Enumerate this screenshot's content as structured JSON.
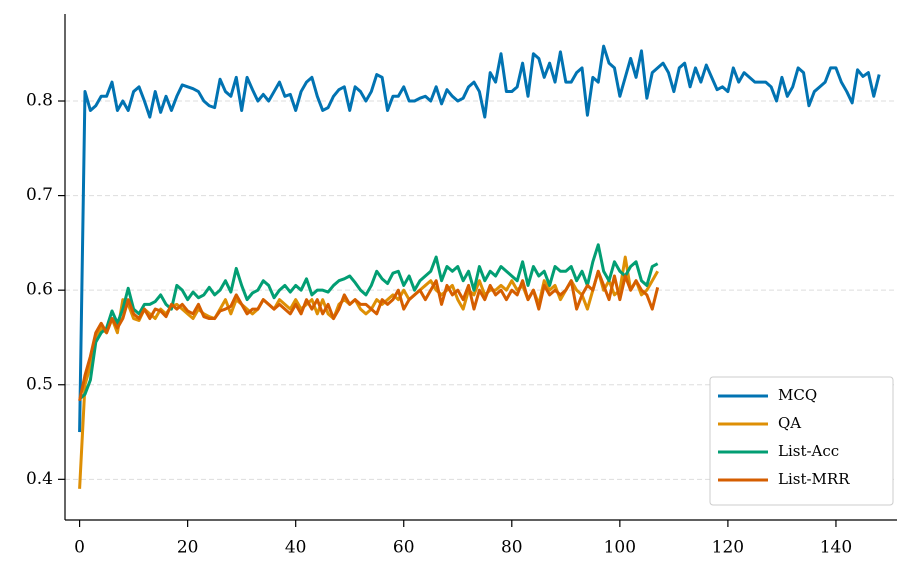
{
  "chart_data": {
    "type": "line",
    "x": [
      0,
      1,
      2,
      3,
      4,
      5,
      6,
      7,
      8,
      9,
      10,
      11,
      12,
      13,
      14,
      15,
      16,
      17,
      18,
      19,
      20,
      21,
      22,
      23,
      24,
      25,
      26,
      27,
      28,
      29,
      30,
      31,
      32,
      33,
      34,
      35,
      36,
      37,
      38,
      39,
      40,
      41,
      42,
      43,
      44,
      45,
      46,
      47,
      48,
      49,
      50,
      51,
      52,
      53,
      54,
      55,
      56,
      57,
      58,
      59,
      60,
      61,
      62,
      63,
      64,
      65,
      66,
      67,
      68,
      69,
      70,
      71,
      72,
      73,
      74,
      75,
      76,
      77,
      78,
      79,
      80,
      81,
      82,
      83,
      84,
      85,
      86,
      87,
      88,
      89,
      90,
      91,
      92,
      93,
      94,
      95,
      96,
      97,
      98,
      99,
      100,
      101,
      102,
      103,
      104,
      105,
      106,
      107,
      108,
      109,
      110,
      111,
      112,
      113,
      114,
      115,
      116,
      117,
      118,
      119,
      120,
      121,
      122,
      123,
      124,
      125,
      126,
      127,
      128,
      129,
      130,
      131,
      132,
      133,
      134,
      135,
      136,
      137,
      138,
      139,
      140,
      141,
      142,
      143,
      144,
      145,
      146,
      147,
      148
    ],
    "series": [
      {
        "name": "MCQ",
        "color": "#0173b2",
        "values": [
          0.45,
          0.81,
          0.79,
          0.795,
          0.805,
          0.805,
          0.82,
          0.79,
          0.8,
          0.79,
          0.81,
          0.815,
          0.8,
          0.783,
          0.81,
          0.788,
          0.805,
          0.79,
          0.805,
          0.817,
          0.815,
          0.813,
          0.81,
          0.8,
          0.795,
          0.793,
          0.823,
          0.81,
          0.805,
          0.825,
          0.79,
          0.825,
          0.812,
          0.8,
          0.807,
          0.8,
          0.81,
          0.82,
          0.805,
          0.807,
          0.79,
          0.81,
          0.82,
          0.825,
          0.805,
          0.79,
          0.793,
          0.805,
          0.812,
          0.815,
          0.79,
          0.815,
          0.81,
          0.8,
          0.81,
          0.828,
          0.825,
          0.79,
          0.805,
          0.805,
          0.815,
          0.8,
          0.8,
          0.803,
          0.805,
          0.8,
          0.815,
          0.797,
          0.812,
          0.805,
          0.8,
          0.803,
          0.815,
          0.82,
          0.81,
          0.783,
          0.83,
          0.82,
          0.85,
          0.81,
          0.81,
          0.815,
          0.84,
          0.805,
          0.85,
          0.845,
          0.825,
          0.84,
          0.82,
          0.852,
          0.82,
          0.82,
          0.83,
          0.835,
          0.785,
          0.825,
          0.82,
          0.858,
          0.84,
          0.835,
          0.805,
          0.825,
          0.845,
          0.825,
          0.853,
          0.803,
          0.83,
          0.835,
          0.84,
          0.83,
          0.81,
          0.835,
          0.84,
          0.815,
          0.835,
          0.82,
          0.838,
          0.825,
          0.812,
          0.815,
          0.81,
          0.835,
          0.82,
          0.83,
          0.825,
          0.82,
          0.82,
          0.82,
          0.815,
          0.8,
          0.825,
          0.805,
          0.815,
          0.835,
          0.83,
          0.795,
          0.81,
          0.815,
          0.82,
          0.835,
          0.835,
          0.82,
          0.81,
          0.798,
          0.833,
          0.826,
          0.83,
          0.805,
          0.828
        ]
      },
      {
        "name": "QA",
        "color": "#de8f05",
        "values": [
          0.39,
          0.5,
          0.52,
          0.55,
          0.56,
          0.555,
          0.57,
          0.555,
          0.59,
          0.585,
          0.57,
          0.568,
          0.58,
          0.575,
          0.57,
          0.58,
          0.575,
          0.583,
          0.585,
          0.58,
          0.575,
          0.57,
          0.58,
          0.575,
          0.572,
          0.57,
          0.58,
          0.59,
          0.575,
          0.59,
          0.585,
          0.58,
          0.575,
          0.58,
          0.59,
          0.585,
          0.58,
          0.59,
          0.585,
          0.58,
          0.59,
          0.58,
          0.585,
          0.59,
          0.575,
          0.59,
          0.575,
          0.57,
          0.585,
          0.59,
          0.585,
          0.59,
          0.58,
          0.575,
          0.58,
          0.59,
          0.585,
          0.59,
          0.595,
          0.59,
          0.6,
          0.59,
          0.595,
          0.6,
          0.605,
          0.61,
          0.6,
          0.595,
          0.6,
          0.605,
          0.59,
          0.58,
          0.6,
          0.595,
          0.61,
          0.595,
          0.6,
          0.6,
          0.605,
          0.6,
          0.61,
          0.6,
          0.605,
          0.59,
          0.6,
          0.585,
          0.61,
          0.6,
          0.605,
          0.59,
          0.6,
          0.61,
          0.6,
          0.595,
          0.58,
          0.6,
          0.62,
          0.6,
          0.61,
          0.595,
          0.6,
          0.635,
          0.6,
          0.61,
          0.595,
          0.6,
          0.61,
          0.62,
          null,
          null,
          null,
          null,
          null,
          null,
          null,
          null,
          null,
          null,
          null,
          null,
          null,
          null,
          null,
          null,
          null,
          null,
          null,
          null,
          null,
          null,
          null,
          null,
          null,
          null,
          null,
          null,
          null,
          null,
          null,
          null,
          null,
          null,
          null,
          null,
          null,
          null,
          null,
          null,
          null
        ]
      },
      {
        "name": "List-Acc",
        "color": "#029e73",
        "values": [
          0.485,
          0.49,
          0.505,
          0.545,
          0.555,
          0.56,
          0.578,
          0.565,
          0.58,
          0.602,
          0.58,
          0.575,
          0.585,
          0.585,
          0.588,
          0.595,
          0.585,
          0.58,
          0.605,
          0.6,
          0.59,
          0.598,
          0.592,
          0.595,
          0.603,
          0.595,
          0.6,
          0.61,
          0.598,
          0.623,
          0.605,
          0.59,
          0.597,
          0.6,
          0.61,
          0.605,
          0.592,
          0.6,
          0.605,
          0.598,
          0.605,
          0.6,
          0.612,
          0.595,
          0.6,
          0.6,
          0.598,
          0.605,
          0.61,
          0.612,
          0.615,
          0.608,
          0.6,
          0.595,
          0.605,
          0.62,
          0.612,
          0.607,
          0.618,
          0.62,
          0.605,
          0.615,
          0.6,
          0.61,
          0.615,
          0.62,
          0.635,
          0.61,
          0.625,
          0.62,
          0.625,
          0.61,
          0.62,
          0.6,
          0.625,
          0.61,
          0.62,
          0.615,
          0.625,
          0.62,
          0.615,
          0.61,
          0.63,
          0.605,
          0.625,
          0.615,
          0.62,
          0.605,
          0.625,
          0.62,
          0.62,
          0.625,
          0.61,
          0.62,
          0.605,
          0.63,
          0.648,
          0.62,
          0.61,
          0.63,
          0.62,
          0.615,
          0.625,
          0.63,
          0.61,
          0.605,
          0.625,
          0.628,
          null,
          null,
          null,
          null,
          null,
          null,
          null,
          null,
          null,
          null,
          null,
          null,
          null,
          null,
          null,
          null,
          null,
          null,
          null,
          null,
          null,
          null,
          null,
          null,
          null,
          null,
          null,
          null,
          null,
          null,
          null,
          null,
          null,
          null,
          null,
          null,
          null,
          null,
          null,
          null,
          null
        ]
      },
      {
        "name": "List-MRR",
        "color": "#d55e00",
        "values": [
          0.483,
          0.51,
          0.53,
          0.555,
          0.565,
          0.555,
          0.57,
          0.56,
          0.57,
          0.59,
          0.575,
          0.57,
          0.58,
          0.57,
          0.58,
          0.578,
          0.572,
          0.585,
          0.58,
          0.585,
          0.578,
          0.575,
          0.585,
          0.572,
          0.57,
          0.57,
          0.578,
          0.58,
          0.583,
          0.595,
          0.585,
          0.575,
          0.58,
          0.58,
          0.59,
          0.585,
          0.58,
          0.585,
          0.58,
          0.575,
          0.585,
          0.575,
          0.59,
          0.58,
          0.59,
          0.575,
          0.585,
          0.57,
          0.58,
          0.595,
          0.585,
          0.59,
          0.585,
          0.585,
          0.58,
          0.575,
          0.59,
          0.585,
          0.59,
          0.6,
          0.58,
          0.59,
          0.595,
          0.6,
          0.59,
          0.6,
          0.61,
          0.585,
          0.605,
          0.595,
          0.6,
          0.59,
          0.605,
          0.58,
          0.6,
          0.59,
          0.605,
          0.595,
          0.6,
          0.59,
          0.6,
          0.595,
          0.61,
          0.59,
          0.6,
          0.58,
          0.605,
          0.595,
          0.6,
          0.595,
          0.6,
          0.61,
          0.58,
          0.595,
          0.605,
          0.6,
          0.62,
          0.605,
          0.59,
          0.615,
          0.59,
          0.615,
          0.6,
          0.61,
          0.6,
          0.595,
          0.58,
          0.603,
          null,
          null,
          null,
          null,
          null,
          null,
          null,
          null,
          null,
          null,
          null,
          null,
          null,
          null,
          null,
          null,
          null,
          null,
          null,
          null,
          null,
          null,
          null,
          null,
          null,
          null,
          null,
          null,
          null,
          null,
          null,
          null,
          null,
          null,
          null,
          null,
          null,
          null,
          null,
          null,
          null
        ]
      }
    ],
    "xlim": [
      -2.7,
      151.3
    ],
    "ylim": [
      0.357,
      0.892
    ],
    "xticks": [
      0,
      20,
      40,
      60,
      80,
      100,
      120,
      140
    ],
    "yticks": [
      0.4,
      0.5,
      0.6,
      0.7,
      0.8
    ],
    "grid": "y",
    "legend": "lower right"
  }
}
